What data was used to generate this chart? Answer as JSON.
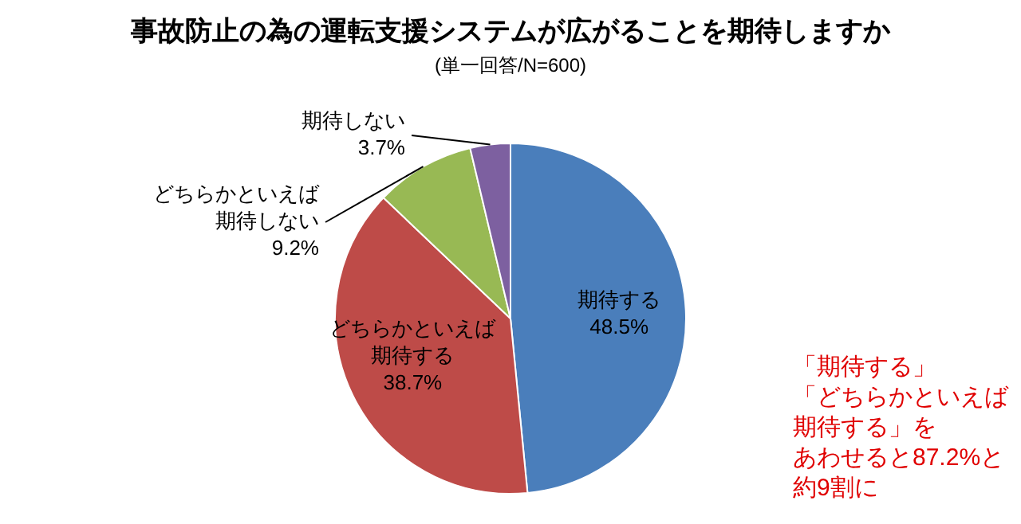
{
  "chart_data": {
    "type": "pie",
    "title": "事故防止の為の運転支援システムが広がることを期待しますか",
    "subtitle": "(単一回答/N=600)",
    "categories": [
      "期待する",
      "どちらかといえば期待する",
      "どちらかといえば期待しない",
      "期待しない"
    ],
    "values": [
      48.5,
      38.7,
      9.2,
      3.7
    ],
    "value_labels": [
      "48.5%",
      "38.7%",
      "9.2%",
      "3.7%"
    ],
    "colors": [
      "#4a7ebb",
      "#be4b48",
      "#98b954",
      "#7d60a0"
    ],
    "annotations": [
      "「期待する」",
      "「どちらかといえば",
      "期待する」を",
      "あわせると87.2%と",
      "約9割に"
    ],
    "legend": false
  }
}
